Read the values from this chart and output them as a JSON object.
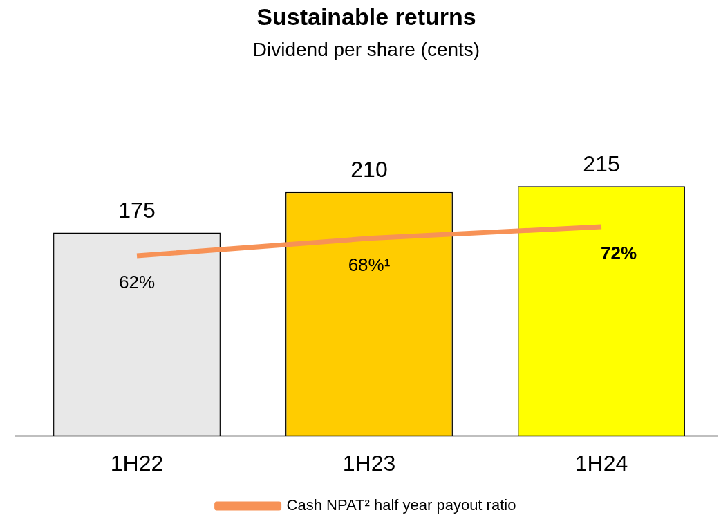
{
  "chart_data": {
    "type": "bar",
    "title": "Sustainable returns",
    "subtitle": "Dividend per share (cents)",
    "categories": [
      "1H22",
      "1H23",
      "1H24"
    ],
    "series": [
      {
        "colors": [
          "#e8e8e8",
          "#ffcc00",
          "#ffff00"
        ],
        "values": [
          175,
          210,
          215
        ]
      },
      {
        "type": "line",
        "name": "Cash NPAT² half year payout ratio",
        "color": "#f79256",
        "axis": "y2",
        "values": [
          62,
          68,
          72
        ],
        "value_labels": [
          "62%",
          "68%¹",
          "72%"
        ]
      }
    ],
    "tick_labels": "x",
    "data_labels": true,
    "legend": "bottom",
    "marker": "none"
  }
}
